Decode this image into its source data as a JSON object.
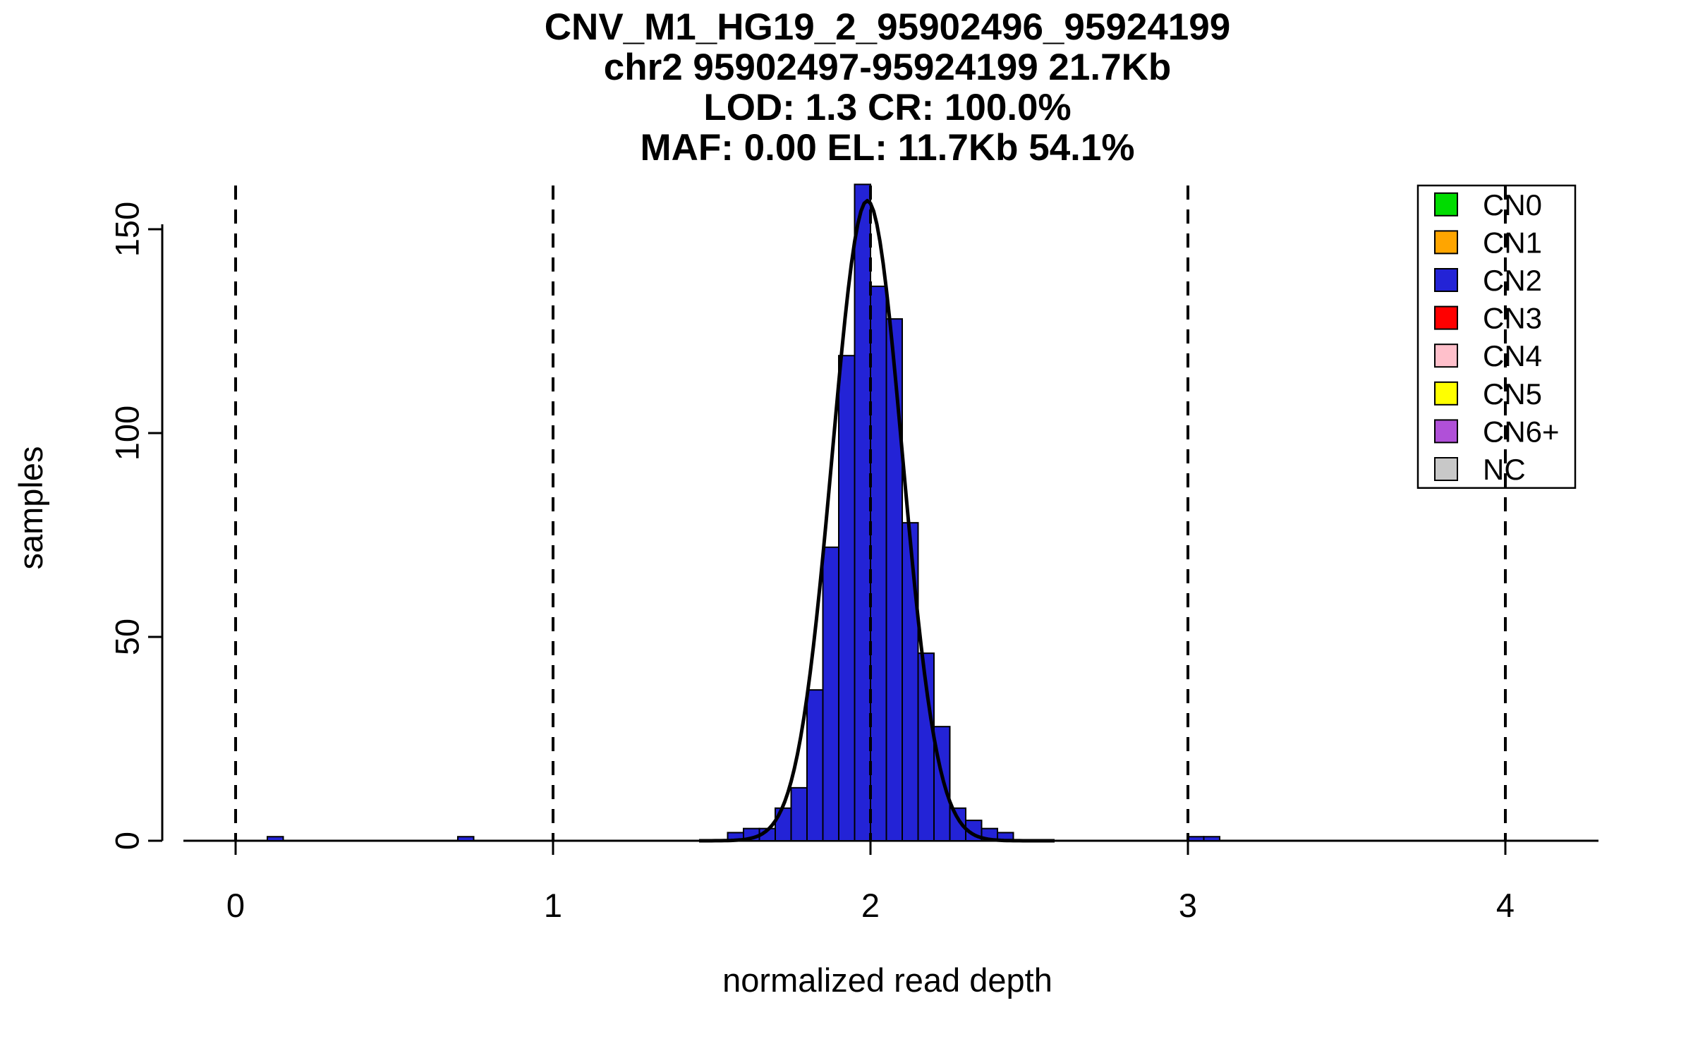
{
  "chart_data": {
    "type": "bar",
    "title": "CNV_M1_HG19_2_95902496_95924199",
    "subtitle_lines": [
      "chr2 95902497-95924199 21.7Kb",
      "LOD: 1.3 CR: 100.0%",
      "MAF: 0.00 EL: 11.7Kb 54.1%"
    ],
    "xlabel": "normalized read depth",
    "ylabel": "samples",
    "xticks": [
      0,
      1,
      2,
      3,
      4
    ],
    "yticks": [
      0,
      50,
      100,
      150
    ],
    "xlim": [
      -0.25,
      4.35
    ],
    "ylim": [
      0,
      165
    ],
    "grid": false,
    "legend_position": "top-right",
    "vlines": {
      "positions": [
        0,
        1,
        2,
        3,
        4
      ],
      "style": "dashed",
      "color": "#000000"
    },
    "histogram": {
      "series": "CN2",
      "bar_color": "#2323D6",
      "bar_edge_color": "#000000",
      "bin_width": 0.05,
      "bins_start": 1.55,
      "counts": [
        2,
        3,
        3,
        8,
        13,
        37,
        72,
        119,
        161,
        136,
        128,
        78,
        46,
        28,
        8,
        5,
        3,
        2
      ],
      "outlier_bins": [
        {
          "x": 0.1,
          "count": 1
        },
        {
          "x": 0.7,
          "count": 1
        },
        {
          "x": 3.0,
          "count": 1
        },
        {
          "x": 3.05,
          "count": 1
        }
      ]
    },
    "fit_curve": {
      "shape": "gaussian",
      "mean": 1.99,
      "sd": 0.11,
      "peak": 157,
      "color": "#000000"
    },
    "legend": {
      "items": [
        {
          "label": "CN0",
          "color": "#00DC00"
        },
        {
          "label": "CN1",
          "color": "#FFA500"
        },
        {
          "label": "CN2",
          "color": "#2323D6"
        },
        {
          "label": "CN3",
          "color": "#FF0000"
        },
        {
          "label": "CN4",
          "color": "#FFC0CB"
        },
        {
          "label": "CN5",
          "color": "#FFFF00"
        },
        {
          "label": "CN6+",
          "color": "#B050D8"
        },
        {
          "label": "NC",
          "color": "#C8C8C8"
        }
      ]
    }
  }
}
